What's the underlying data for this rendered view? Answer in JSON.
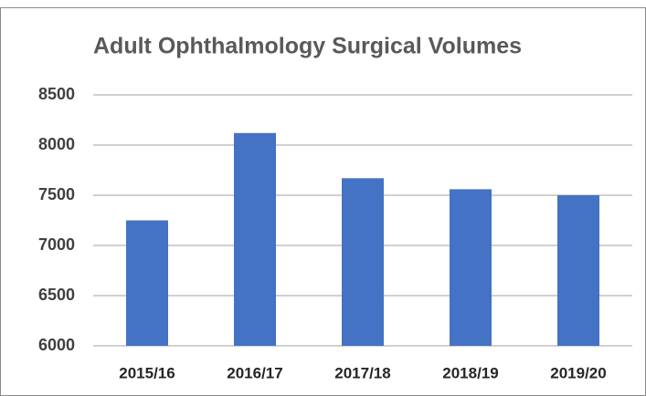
{
  "chart_data": {
    "type": "bar",
    "title": "Adult Ophthalmology Surgical Volumes",
    "categories": [
      "2015/16",
      "2016/17",
      "2017/18",
      "2018/19",
      "2019/20"
    ],
    "values": [
      7250,
      8120,
      7670,
      7560,
      7500
    ],
    "color": "#4472c4",
    "ylim": [
      6000,
      8500
    ],
    "yticks": [
      6000,
      6500,
      7000,
      7500,
      8000,
      8500
    ],
    "grid": true
  }
}
